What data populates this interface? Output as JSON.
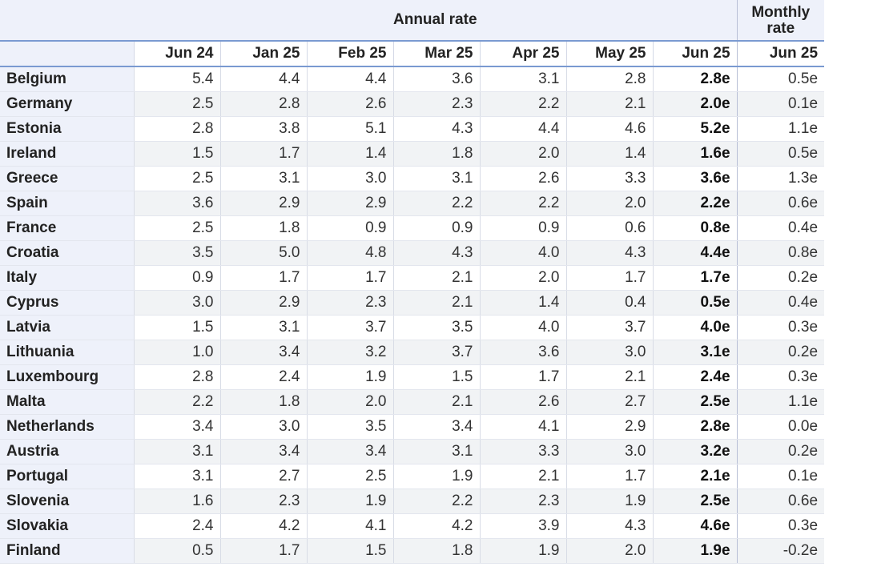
{
  "header": {
    "annual_label": "Annual rate",
    "monthly_label_line1": "Monthly",
    "monthly_label_line2": "rate"
  },
  "columns": [
    "Jun 24",
    "Jan 25",
    "Feb 25",
    "Mar 25",
    "Apr 25",
    "May 25",
    "Jun 25",
    "Jun 25"
  ],
  "rows": [
    {
      "country": "Belgium",
      "values": [
        "5.4",
        "4.4",
        "4.4",
        "3.6",
        "3.1",
        "2.8",
        "2.8e",
        "0.5e"
      ]
    },
    {
      "country": "Germany",
      "values": [
        "2.5",
        "2.8",
        "2.6",
        "2.3",
        "2.2",
        "2.1",
        "2.0e",
        "0.1e"
      ]
    },
    {
      "country": "Estonia",
      "values": [
        "2.8",
        "3.8",
        "5.1",
        "4.3",
        "4.4",
        "4.6",
        "5.2e",
        "1.1e"
      ]
    },
    {
      "country": "Ireland",
      "values": [
        "1.5",
        "1.7",
        "1.4",
        "1.8",
        "2.0",
        "1.4",
        "1.6e",
        "0.5e"
      ]
    },
    {
      "country": "Greece",
      "values": [
        "2.5",
        "3.1",
        "3.0",
        "3.1",
        "2.6",
        "3.3",
        "3.6e",
        "1.3e"
      ]
    },
    {
      "country": "Spain",
      "values": [
        "3.6",
        "2.9",
        "2.9",
        "2.2",
        "2.2",
        "2.0",
        "2.2e",
        "0.6e"
      ]
    },
    {
      "country": "France",
      "values": [
        "2.5",
        "1.8",
        "0.9",
        "0.9",
        "0.9",
        "0.6",
        "0.8e",
        "0.4e"
      ]
    },
    {
      "country": "Croatia",
      "values": [
        "3.5",
        "5.0",
        "4.8",
        "4.3",
        "4.0",
        "4.3",
        "4.4e",
        "0.8e"
      ]
    },
    {
      "country": "Italy",
      "values": [
        "0.9",
        "1.7",
        "1.7",
        "2.1",
        "2.0",
        "1.7",
        "1.7e",
        "0.2e"
      ]
    },
    {
      "country": "Cyprus",
      "values": [
        "3.0",
        "2.9",
        "2.3",
        "2.1",
        "1.4",
        "0.4",
        "0.5e",
        "0.4e"
      ]
    },
    {
      "country": "Latvia",
      "values": [
        "1.5",
        "3.1",
        "3.7",
        "3.5",
        "4.0",
        "3.7",
        "4.0e",
        "0.3e"
      ]
    },
    {
      "country": "Lithuania",
      "values": [
        "1.0",
        "3.4",
        "3.2",
        "3.7",
        "3.6",
        "3.0",
        "3.1e",
        "0.2e"
      ]
    },
    {
      "country": "Luxembourg",
      "values": [
        "2.8",
        "2.4",
        "1.9",
        "1.5",
        "1.7",
        "2.1",
        "2.4e",
        "0.3e"
      ]
    },
    {
      "country": "Malta",
      "values": [
        "2.2",
        "1.8",
        "2.0",
        "2.1",
        "2.6",
        "2.7",
        "2.5e",
        "1.1e"
      ]
    },
    {
      "country": "Netherlands",
      "values": [
        "3.4",
        "3.0",
        "3.5",
        "3.4",
        "4.1",
        "2.9",
        "2.8e",
        "0.0e"
      ]
    },
    {
      "country": "Austria",
      "values": [
        "3.1",
        "3.4",
        "3.4",
        "3.1",
        "3.3",
        "3.0",
        "3.2e",
        "0.2e"
      ]
    },
    {
      "country": "Portugal",
      "values": [
        "3.1",
        "2.7",
        "2.5",
        "1.9",
        "2.1",
        "1.7",
        "2.1e",
        "0.1e"
      ]
    },
    {
      "country": "Slovenia",
      "values": [
        "1.6",
        "2.3",
        "1.9",
        "2.2",
        "2.3",
        "1.9",
        "2.5e",
        "0.6e"
      ]
    },
    {
      "country": "Slovakia",
      "values": [
        "2.4",
        "4.2",
        "4.1",
        "4.2",
        "3.9",
        "4.3",
        "4.6e",
        "0.3e"
      ]
    },
    {
      "country": "Finland",
      "values": [
        "0.5",
        "1.7",
        "1.5",
        "1.8",
        "1.9",
        "2.0",
        "1.9e",
        "-0.2e"
      ]
    }
  ]
}
